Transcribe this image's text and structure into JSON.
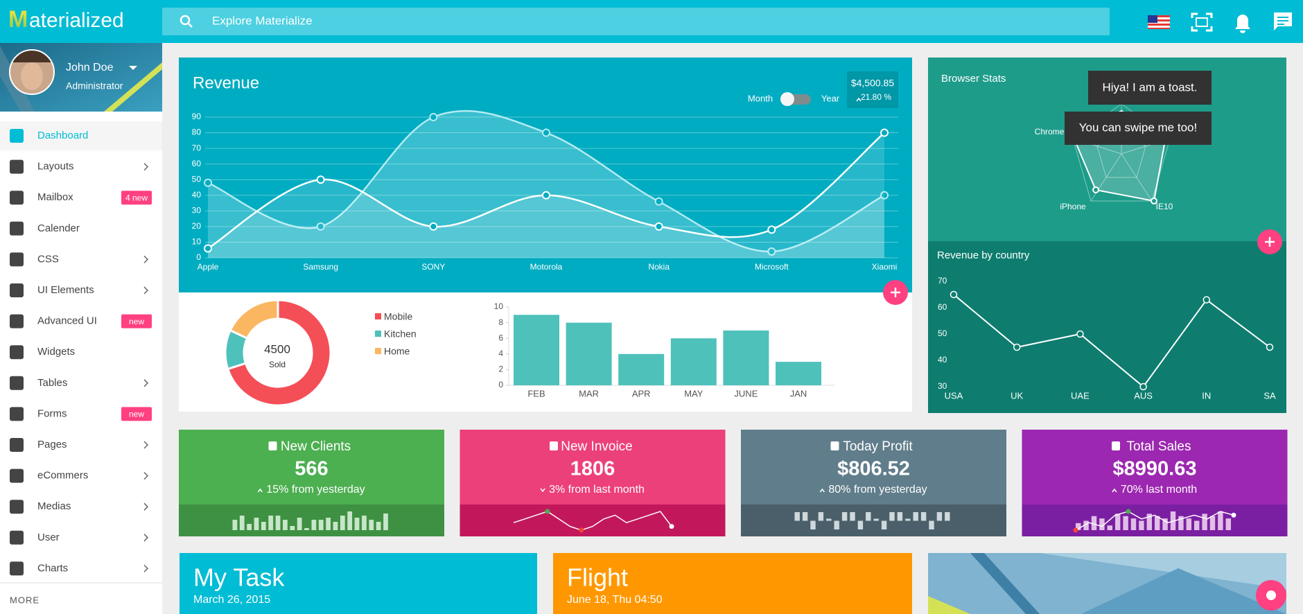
{
  "header": {
    "logo_initial": "M",
    "logo_rest": "aterialized",
    "search_placeholder": "Explore Materialize"
  },
  "sidebar": {
    "user": {
      "name": "John Doe",
      "role": "Administrator"
    },
    "menu": [
      {
        "label": "Dashboard",
        "active": true
      },
      {
        "label": "Layouts",
        "submenu": true
      },
      {
        "label": "Mailbox",
        "badge": "4 new"
      },
      {
        "label": "Calender"
      },
      {
        "label": "CSS",
        "submenu": true
      },
      {
        "label": "UI Elements",
        "submenu": true
      },
      {
        "label": "Advanced UI",
        "badge": "new"
      },
      {
        "label": "Widgets"
      },
      {
        "label": "Tables",
        "submenu": true
      },
      {
        "label": "Forms",
        "badge": "new"
      },
      {
        "label": "Pages",
        "submenu": true
      },
      {
        "label": "eCommers",
        "submenu": true
      },
      {
        "label": "Medias",
        "submenu": true
      },
      {
        "label": "User",
        "submenu": true
      },
      {
        "label": "Charts",
        "submenu": true
      }
    ],
    "more": "MORE"
  },
  "revenue": {
    "title": "Revenue",
    "toggle": {
      "left": "Month",
      "right": "Year"
    },
    "total": "$4,500.85",
    "change": "21.80 %",
    "chart_data": {
      "type": "line",
      "categories": [
        "Apple",
        "Samsung",
        "SONY",
        "Motorola",
        "Nokia",
        "Microsoft",
        "Xiaomi"
      ],
      "series": [
        {
          "color": "#b2ebf2",
          "values": [
            48,
            20,
            90,
            80,
            36,
            4,
            40
          ]
        },
        {
          "color": "#ffffff",
          "values": [
            6,
            50,
            20,
            40,
            20,
            18,
            80
          ]
        }
      ],
      "ylim": [
        0,
        90
      ],
      "yticks": [
        0,
        10,
        20,
        30,
        40,
        50,
        60,
        70,
        80,
        90
      ],
      "grid": true
    }
  },
  "sales": {
    "center_value": "4500",
    "center_label": "Sold",
    "chart_data": {
      "type": "pie",
      "categories": [
        "Mobile",
        "Kitchen",
        "Home"
      ],
      "values": [
        70,
        12,
        18
      ],
      "colors": [
        "#f44f57",
        "#4fc1bb",
        "#fbb661"
      ]
    }
  },
  "monthly": {
    "chart_data": {
      "type": "bar",
      "categories": [
        "FEB",
        "MAR",
        "APR",
        "MAY",
        "JUNE",
        "JAN"
      ],
      "values": [
        9,
        8,
        4,
        6,
        7,
        3
      ],
      "color": "#4fc1bb",
      "ylim": [
        0,
        10
      ],
      "yticks": [
        0,
        2,
        4,
        6,
        8,
        10
      ]
    }
  },
  "browser_stats": {
    "title": "Browser Stats",
    "labels": [
      "Chrome",
      "iPhone",
      "IE10"
    ]
  },
  "toasts": [
    "Hiya! I am a toast.",
    "You can swipe me too!"
  ],
  "country": {
    "title": "Revenue by country",
    "chart_data": {
      "type": "line",
      "categories": [
        "USA",
        "UK",
        "UAE",
        "AUS",
        "IN",
        "SA"
      ],
      "values": [
        65,
        45,
        50,
        30,
        63,
        45
      ],
      "color": "#ffffff",
      "ylim": [
        30,
        70
      ],
      "yticks": [
        30,
        40,
        50,
        60,
        70
      ]
    }
  },
  "stats": [
    {
      "title": "New Clients",
      "value": "566",
      "change": "15% from yesterday",
      "direction": "up",
      "color": "#4caf50",
      "dark": "#3e9142",
      "spark": {
        "type": "bar",
        "values": [
          5,
          7,
          3,
          6,
          4,
          7,
          7,
          5,
          2,
          6,
          1,
          5,
          5,
          6,
          4,
          7,
          9,
          6,
          7,
          5,
          4,
          8
        ]
      }
    },
    {
      "title": "New Invoice",
      "value": "1806",
      "change": "3% from last month",
      "direction": "down",
      "color": "#ec407a",
      "dark": "#c2185b",
      "spark": {
        "type": "line",
        "values": [
          5,
          6,
          7,
          8,
          6,
          4,
          3,
          4,
          6,
          7,
          5,
          6,
          7,
          8,
          4
        ]
      }
    },
    {
      "title": "Today Profit",
      "value": "$806.52",
      "change": "80% from yesterday",
      "direction": "up",
      "color": "#607d8b",
      "dark": "#4a5f69",
      "spark": {
        "type": "tristate",
        "values": [
          1,
          1,
          -1,
          1,
          0,
          -1,
          1,
          1,
          -1,
          1,
          0,
          -1,
          1,
          1,
          0,
          1,
          1,
          -1,
          1,
          1
        ]
      }
    },
    {
      "title": "Total Sales",
      "value": "$8990.63",
      "change": "70% last month",
      "direction": "up",
      "color": "#9c27b0",
      "dark": "#7b1fa2",
      "spark": {
        "type": "combo",
        "values": [
          3,
          4,
          6,
          5,
          2,
          7,
          6,
          5,
          4,
          7,
          6,
          5,
          8,
          6,
          5,
          4,
          7,
          6,
          8,
          5
        ],
        "line": [
          2,
          4,
          3,
          6,
          7,
          5,
          6,
          4,
          5,
          6,
          5,
          7,
          6
        ]
      }
    }
  ],
  "task": {
    "title": "My Task",
    "date": "March 26, 2015"
  },
  "flight": {
    "title": "Flight",
    "date": "June 18, Thu 04:50"
  }
}
